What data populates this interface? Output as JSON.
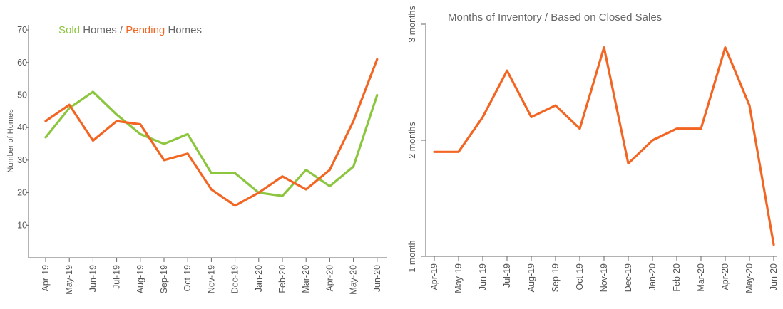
{
  "chart_data": [
    {
      "type": "line",
      "title_parts": [
        {
          "text": "Sold",
          "color": "#8cc63f"
        },
        {
          "text": " Homes / ",
          "color": "#666666"
        },
        {
          "text": "Pending",
          "color": "#f26522"
        },
        {
          "text": " Homes",
          "color": "#666666"
        }
      ],
      "ylabel": "Number of Homes",
      "categories": [
        "Apr-19",
        "May-19",
        "Jun-19",
        "Jul-19",
        "Aug-19",
        "Sep-19",
        "Oct-19",
        "Nov-19",
        "Dec-19",
        "Jan-20",
        "Feb-20",
        "Mar-20",
        "Apr-20",
        "May-20",
        "Jun-20"
      ],
      "yticks": [
        "10",
        "20",
        "30",
        "40",
        "50",
        "60",
        "70"
      ],
      "ylim": [
        0,
        70
      ],
      "grid": false,
      "series": [
        {
          "name": "Sold",
          "color": "#8cc63f",
          "values": [
            37,
            46,
            51,
            44,
            38,
            35,
            38,
            26,
            26,
            20,
            19,
            27,
            22,
            28,
            50
          ]
        },
        {
          "name": "Pending",
          "color": "#f26522",
          "values": [
            42,
            47,
            36,
            42,
            41,
            30,
            32,
            21,
            16,
            20,
            25,
            21,
            27,
            42,
            61
          ]
        }
      ]
    },
    {
      "type": "line",
      "title": "Months of Inventory / Based on Closed Sales",
      "categories": [
        "Apr-19",
        "May-19",
        "Jun-19",
        "Jul-19",
        "Aug-19",
        "Sep-19",
        "Oct-19",
        "Nov-19",
        "Dec-19",
        "Jan-20",
        "Feb-20",
        "Mar-20",
        "Apr-20",
        "May-20",
        "Jun-20"
      ],
      "yticks": [
        "1 month",
        "2 months",
        "3 months"
      ],
      "ylim": [
        1,
        3
      ],
      "grid": false,
      "series": [
        {
          "color": "#f26522",
          "values": [
            1.9,
            1.9,
            2.2,
            2.6,
            2.2,
            2.3,
            2.1,
            2.8,
            1.8,
            2.0,
            2.1,
            2.1,
            2.8,
            2.3,
            1.1
          ]
        }
      ]
    }
  ]
}
